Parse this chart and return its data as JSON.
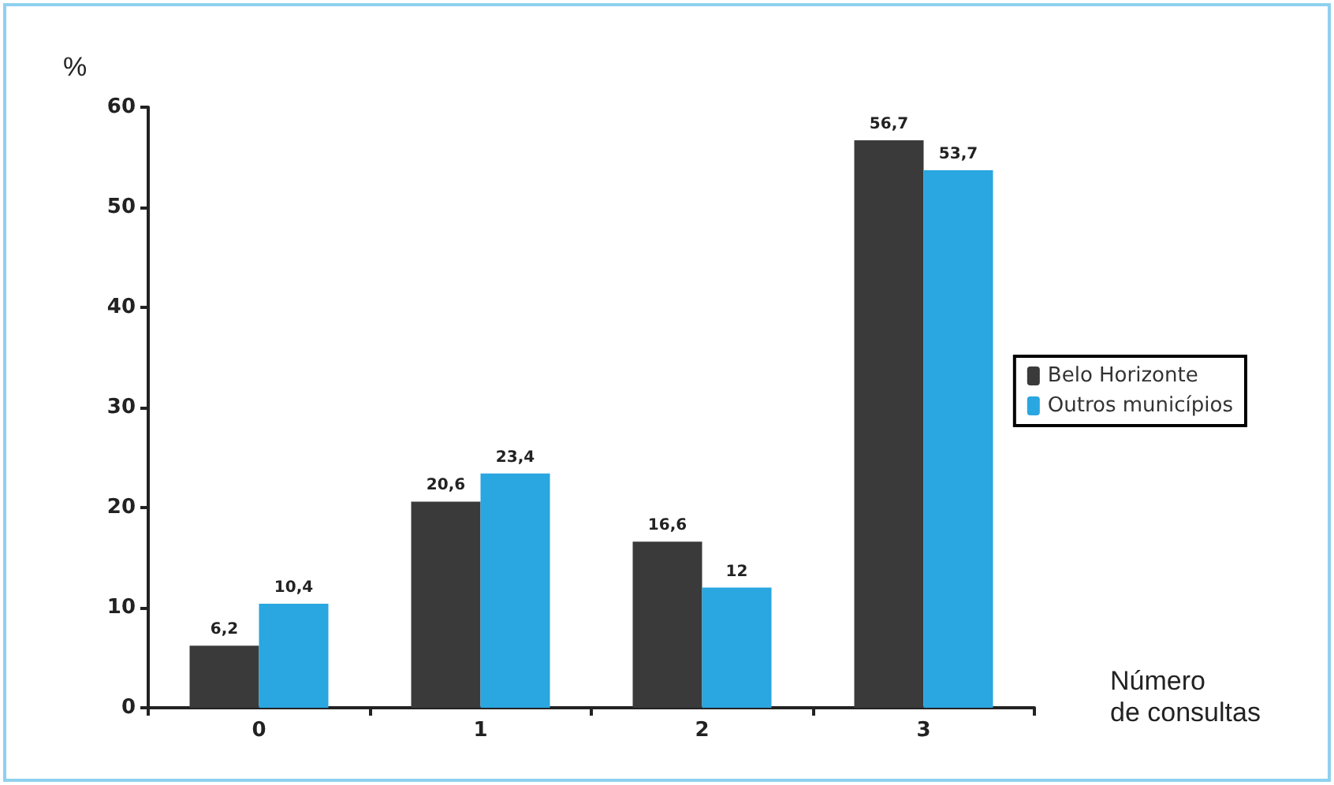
{
  "chart_data": {
    "type": "bar",
    "ylabel": "%",
    "xlabel": "Número\nde consultas",
    "categories": [
      "0",
      "1",
      "2",
      "3"
    ],
    "series": [
      {
        "name": "Belo Horizonte",
        "color": "#3a3a3a",
        "values": [
          6.2,
          20.6,
          16.6,
          56.7
        ],
        "value_labels": [
          "6,2",
          "20,6",
          "16,6",
          "56,7"
        ]
      },
      {
        "name": "Outros municípios",
        "color": "#2aa6e0",
        "values": [
          10.4,
          23.4,
          12,
          53.7
        ],
        "value_labels": [
          "10,4",
          "23,4",
          "12",
          "53,7"
        ]
      }
    ],
    "ylim": [
      0,
      60
    ],
    "yticks": [
      0,
      10,
      20,
      30,
      40,
      50,
      60
    ],
    "grid": false,
    "legend": "right"
  }
}
